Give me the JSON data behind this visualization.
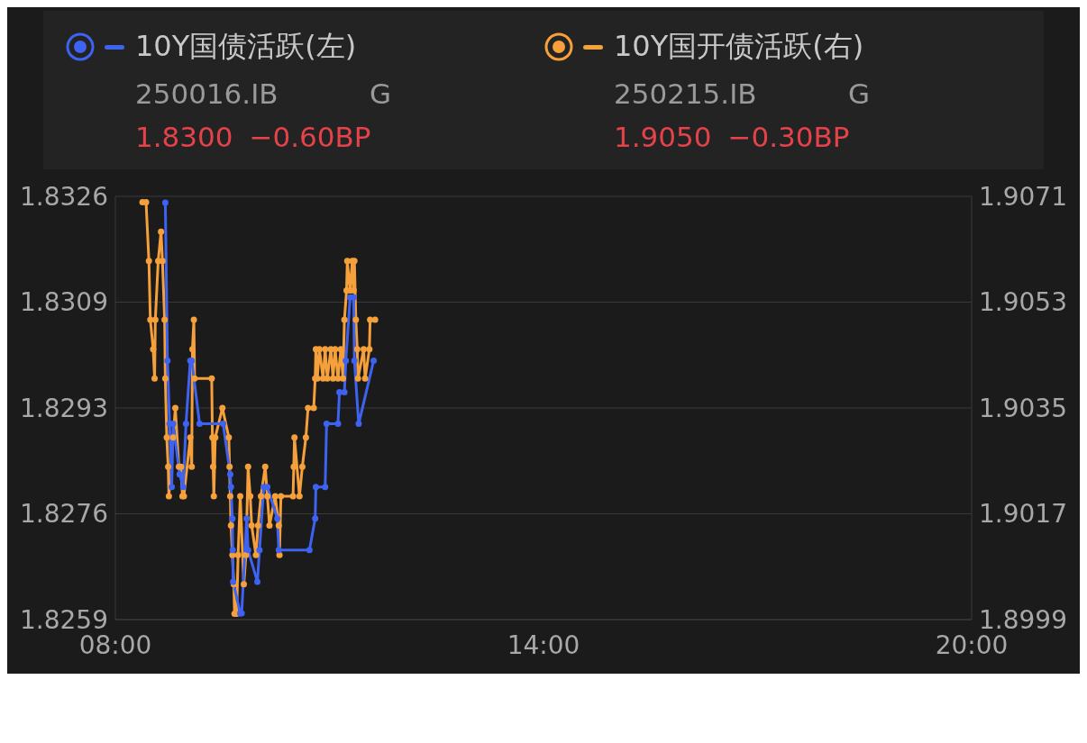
{
  "chart_data": {
    "type": "line",
    "legend": "top",
    "grid": "y",
    "marker": "circle",
    "line_style": "solid",
    "xlim": [
      8,
      20
    ],
    "xticks": [
      {
        "value": 8,
        "label": "08:00"
      },
      {
        "value": 14,
        "label": "14:00"
      },
      {
        "value": 20,
        "label": "20:00"
      }
    ],
    "ylim": [
      1.8259,
      1.8326
    ],
    "yticks": [
      1.8259,
      {
        "value": 1.827575,
        "label": "1.8276"
      },
      {
        "value": 1.82925,
        "label": "1.8293"
      },
      {
        "value": 1.830925,
        "label": "1.8309"
      },
      1.8326
    ],
    "y2lim": [
      1.8999,
      1.9071
    ],
    "y2ticks": [
      1.8999,
      1.9017,
      1.9035,
      1.9053,
      1.9071
    ],
    "annotations": [
      "250016.IB",
      "G",
      "1.8300",
      "−0.60BP",
      "250215.IB",
      "G",
      "1.9050",
      "−0.30BP"
    ],
    "series": [
      {
        "name": "10Y国债活跃(左)",
        "color": "#3d63f0",
        "x": [
          8.7,
          8.73,
          8.76,
          8.79,
          8.81,
          8.9,
          8.95,
          8.99,
          9.05,
          9.07,
          9.18,
          9.51,
          9.61,
          9.62,
          9.64,
          9.645,
          9.65,
          9.75,
          9.77,
          9.84,
          9.86,
          9.99,
          10.02,
          10.08,
          10.13,
          10.27,
          10.29,
          10.72,
          10.8,
          10.81,
          10.94,
          10.96,
          11.12,
          11.14,
          11.21,
          11.23,
          11.29,
          11.34,
          11.35,
          11.41,
          11.62
        ],
        "values": [
          1.8325,
          1.83,
          1.829,
          1.828,
          1.829,
          1.8282,
          1.828,
          1.829,
          1.83,
          1.83,
          1.829,
          1.829,
          1.8282,
          1.828,
          1.8275,
          1.827,
          1.8265,
          1.826,
          1.826,
          1.8275,
          1.827,
          1.8265,
          1.827,
          1.828,
          1.828,
          1.8275,
          1.827,
          1.827,
          1.8275,
          1.828,
          1.828,
          1.829,
          1.829,
          1.8295,
          1.8295,
          1.83,
          1.831,
          1.831,
          1.83,
          1.829,
          1.83
        ]
      },
      {
        "name": "10Y国开债活跃(右)",
        "color": "#f5a03a",
        "axis": "y2",
        "x": [
          8.38,
          8.43,
          8.47,
          8.49,
          8.53,
          8.55,
          8.56,
          8.6,
          8.64,
          8.66,
          8.69,
          8.7,
          8.72,
          8.74,
          8.75,
          8.81,
          8.84,
          8.89,
          8.92,
          8.94,
          8.96,
          9.05,
          9.07,
          9.08,
          9.1,
          9.11,
          9.35,
          9.36,
          9.37,
          9.38,
          9.4,
          9.5,
          9.59,
          9.6,
          9.61,
          9.62,
          9.64,
          9.66,
          9.67,
          9.7,
          9.72,
          9.75,
          9.8,
          9.83,
          9.86,
          9.89,
          9.91,
          9.97,
          10.0,
          10.04,
          10.1,
          10.13,
          10.16,
          10.24,
          10.29,
          10.3,
          10.32,
          10.49,
          10.5,
          10.51,
          10.58,
          10.62,
          10.67,
          10.7,
          10.78,
          10.8,
          10.81,
          10.83,
          10.86,
          10.91,
          10.94,
          10.97,
          11.02,
          11.05,
          11.08,
          11.12,
          11.16,
          11.19,
          11.21,
          11.24,
          11.25,
          11.29,
          11.32,
          11.34,
          11.35,
          11.37,
          11.39,
          11.4,
          11.48,
          11.5,
          11.56,
          11.57,
          11.64
        ],
        "values": [
          1.907,
          1.907,
          1.906,
          1.905,
          1.9045,
          1.904,
          1.905,
          1.906,
          1.9065,
          1.906,
          1.905,
          1.904,
          1.903,
          1.9025,
          1.902,
          1.903,
          1.9035,
          1.9025,
          1.9025,
          1.902,
          1.902,
          1.903,
          1.9025,
          1.9045,
          1.905,
          1.904,
          1.904,
          1.903,
          1.9025,
          1.902,
          1.903,
          1.9035,
          1.903,
          1.9025,
          1.902,
          1.9015,
          1.901,
          1.9005,
          1.9,
          1.9,
          1.901,
          1.902,
          1.9005,
          1.901,
          1.9025,
          1.902,
          1.9015,
          1.901,
          1.9015,
          1.902,
          1.9025,
          1.902,
          1.9015,
          1.902,
          1.9015,
          1.901,
          1.902,
          1.902,
          1.9025,
          1.903,
          1.902,
          1.9025,
          1.903,
          1.9035,
          1.9035,
          1.904,
          1.9045,
          1.904,
          1.9045,
          1.904,
          1.9045,
          1.904,
          1.9045,
          1.904,
          1.9045,
          1.904,
          1.9045,
          1.904,
          1.905,
          1.9055,
          1.906,
          1.9055,
          1.906,
          1.9055,
          1.906,
          1.905,
          1.9045,
          1.904,
          1.9045,
          1.904,
          1.9045,
          1.905,
          1.905
        ]
      }
    ]
  }
}
